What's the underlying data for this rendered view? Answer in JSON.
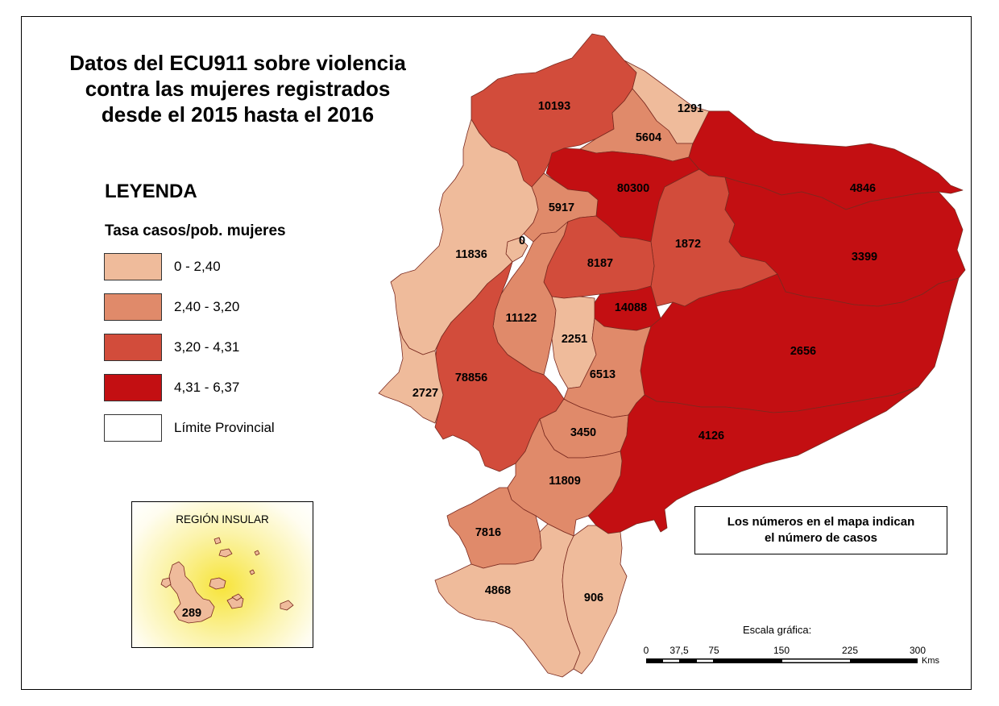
{
  "title": {
    "line1": "Datos del ECU911 sobre violencia",
    "line2": "contra las mujeres registrados",
    "line3": "desde el 2015 hasta el 2016"
  },
  "legend": {
    "title": "LEYENDA",
    "subtitle": "Tasa casos/pob. mujeres",
    "classes": [
      {
        "label": "0 - 2,40",
        "color": "#efbb9b"
      },
      {
        "label": "2,40 - 3,20",
        "color": "#e08a6a"
      },
      {
        "label": "3,20 - 4,31",
        "color": "#d24c3b"
      },
      {
        "label": "4,31 - 6,37",
        "color": "#c30f12"
      }
    ],
    "boundary_label": "Límite Provincial"
  },
  "inset": {
    "title": "REGIÓN INSULAR",
    "galapagos": {
      "cases": "289",
      "class": 0
    }
  },
  "note": {
    "line1": "Los números en el mapa indican",
    "line2": "el número de casos"
  },
  "provinces": [
    {
      "cases": "10193",
      "class": 2
    },
    {
      "cases": "1291",
      "class": 0
    },
    {
      "cases": "5604",
      "class": 1
    },
    {
      "cases": "80300",
      "class": 3
    },
    {
      "cases": "4846",
      "class": 3
    },
    {
      "cases": "5917",
      "class": 1
    },
    {
      "cases": "0",
      "class": 0
    },
    {
      "cases": "11836",
      "class": 0
    },
    {
      "cases": "1872",
      "class": 2
    },
    {
      "cases": "8187",
      "class": 2
    },
    {
      "cases": "3399",
      "class": 3
    },
    {
      "cases": "14088",
      "class": 3
    },
    {
      "cases": "11122",
      "class": 1
    },
    {
      "cases": "2251",
      "class": 0
    },
    {
      "cases": "2656",
      "class": 3
    },
    {
      "cases": "78856",
      "class": 2
    },
    {
      "cases": "6513",
      "class": 1
    },
    {
      "cases": "2727",
      "class": 0
    },
    {
      "cases": "3450",
      "class": 1
    },
    {
      "cases": "4126",
      "class": 3
    },
    {
      "cases": "11809",
      "class": 1
    },
    {
      "cases": "7816",
      "class": 1
    },
    {
      "cases": "4868",
      "class": 0
    },
    {
      "cases": "906",
      "class": 0
    }
  ],
  "scale": {
    "title": "Escala gráfica:",
    "ticks": [
      "0",
      "37,5",
      "75",
      "150",
      "225",
      "300"
    ],
    "unit": "Kms"
  }
}
